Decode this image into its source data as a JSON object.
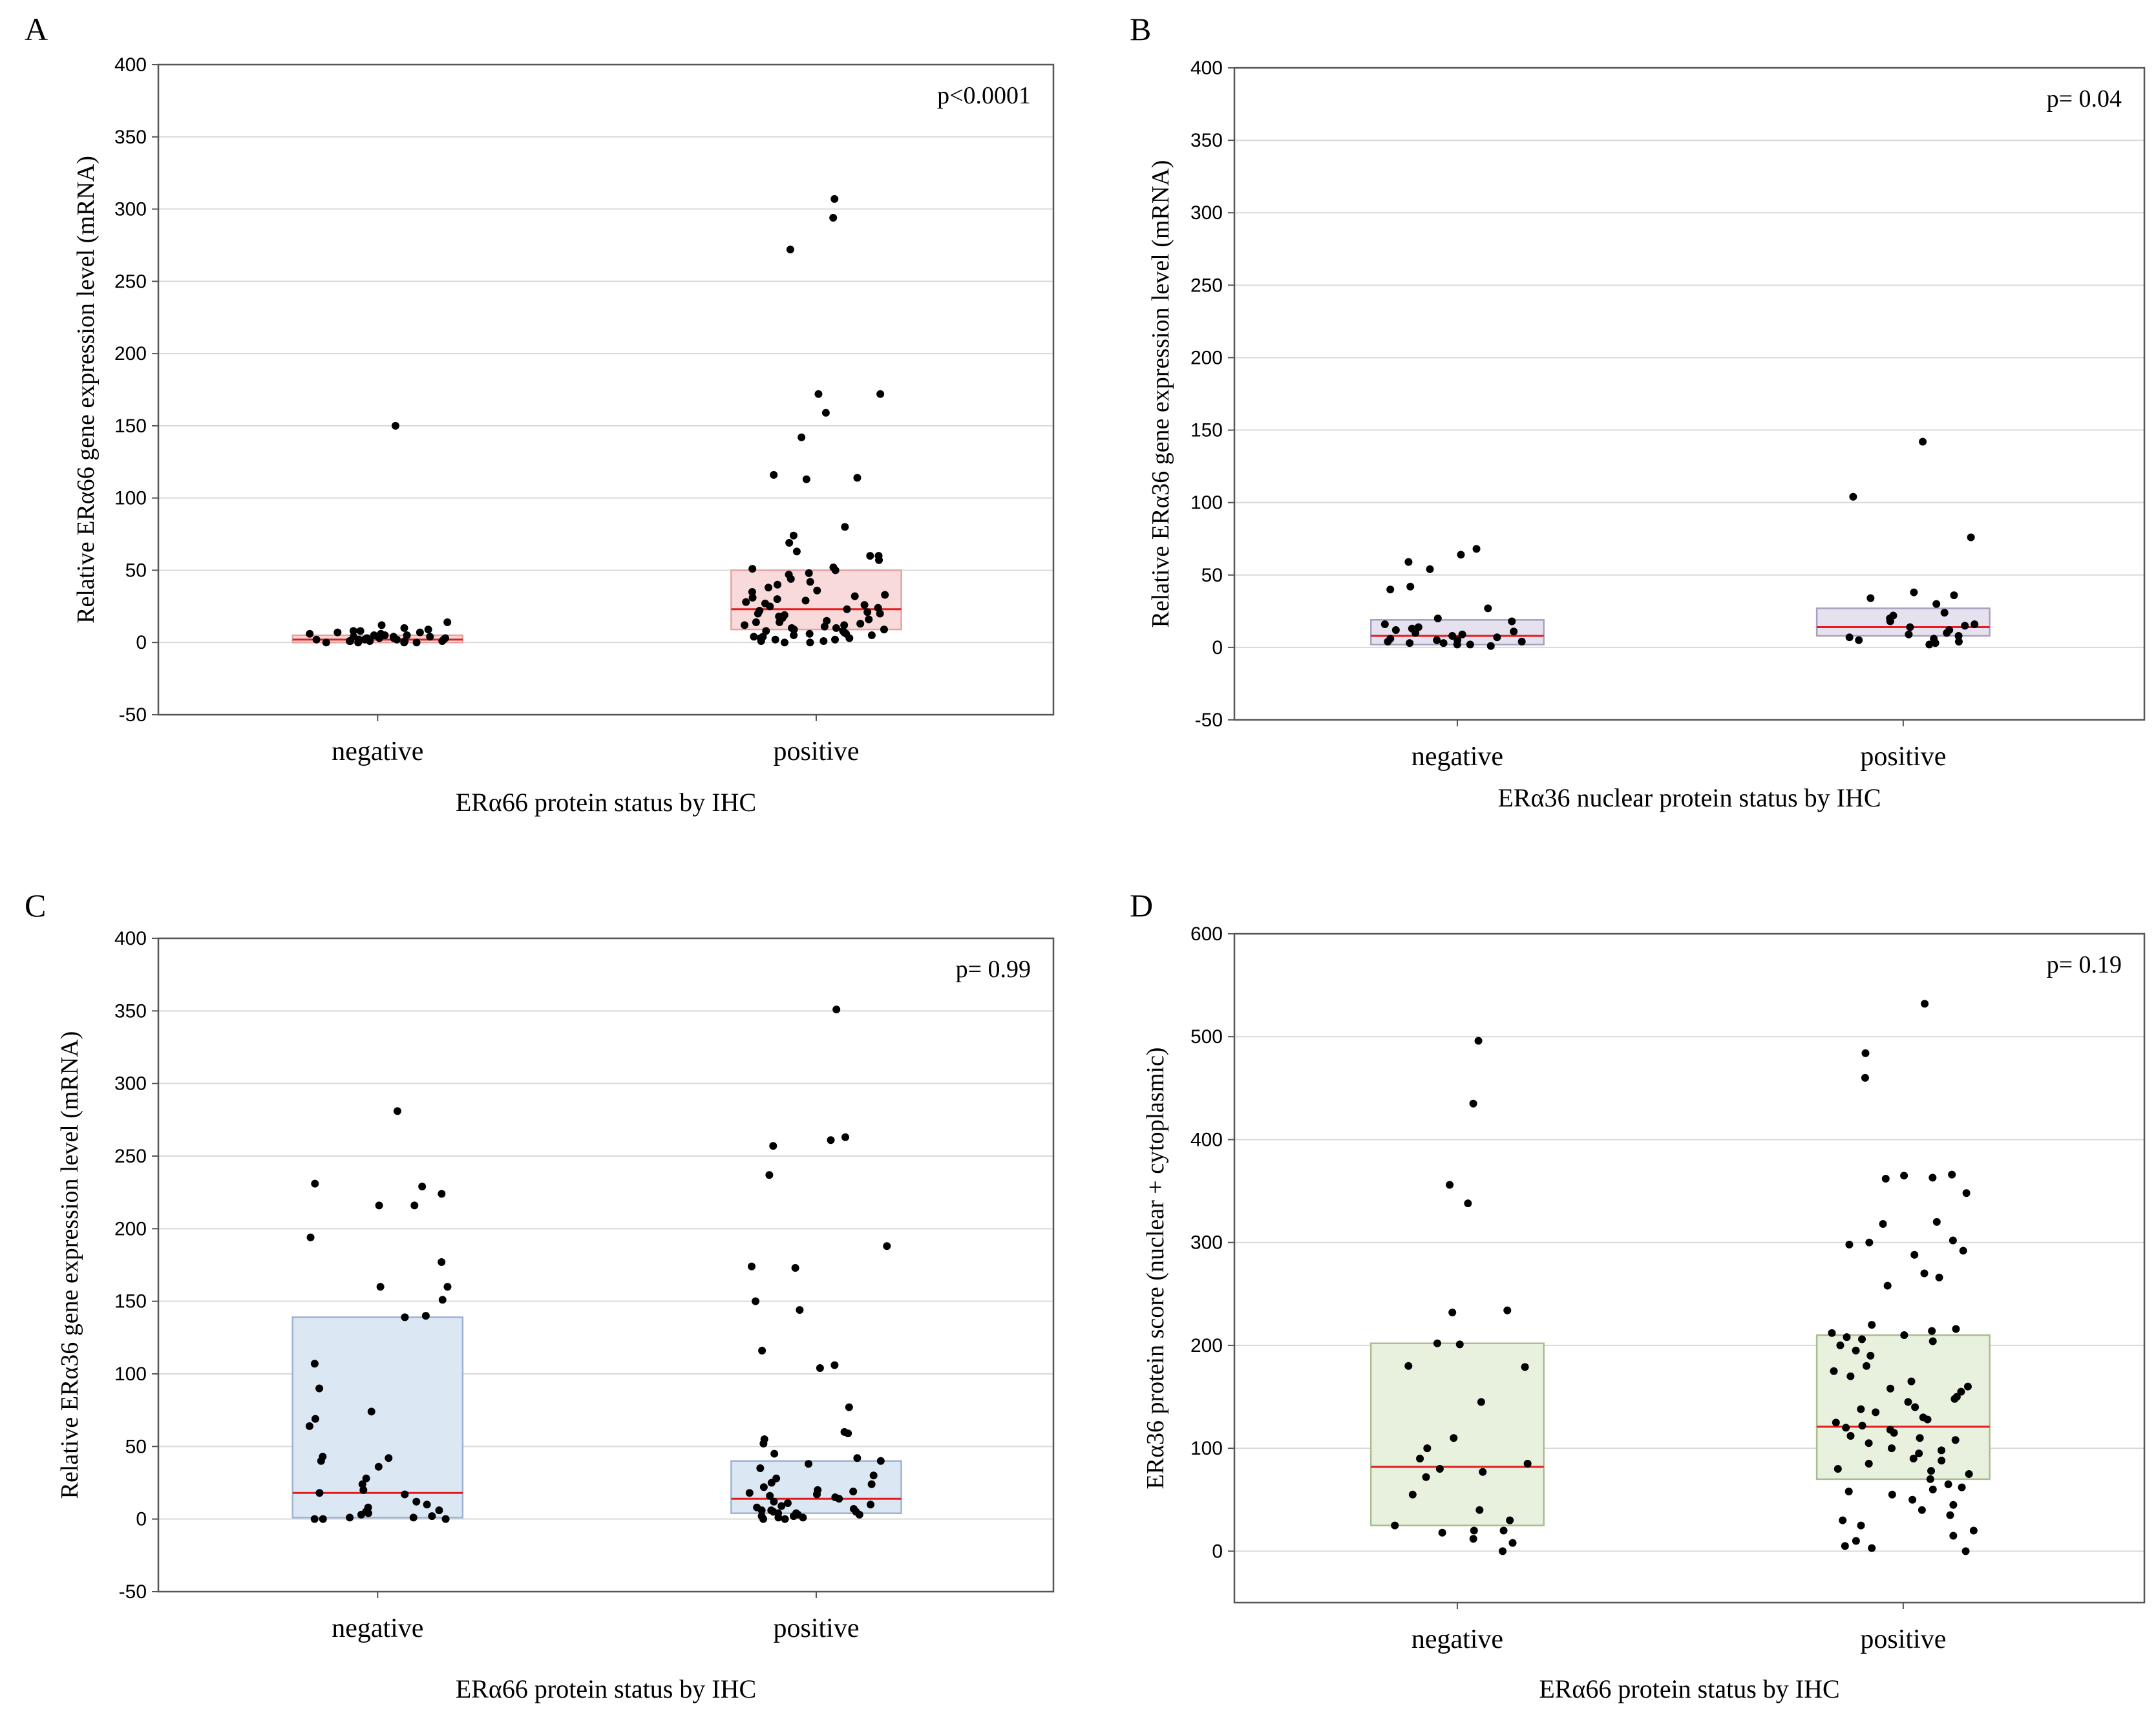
{
  "chart_data": [
    {
      "id": "A",
      "panel_label": "A",
      "type": "scatter",
      "subtype": "box-with-jitter",
      "title": "",
      "xlabel": "ERα66 protein status by IHC",
      "ylabel": "Relative ERα66 gene expression level (mRNA)",
      "ylim": [
        -50,
        400
      ],
      "yticks": [
        "-50",
        "0",
        "50",
        "100",
        "150",
        "200",
        "250",
        "300",
        "350",
        "400"
      ],
      "categories": [
        "negative",
        "positive"
      ],
      "annotation": "p<0.0001",
      "grid": true,
      "box_fill": "#f9dada",
      "box_stroke": "#e3a3a3",
      "median_color": "#e41a1c",
      "boxes": [
        {
          "category": "negative",
          "q1": 0,
          "median": 2,
          "q3": 5
        },
        {
          "category": "positive",
          "q1": 9,
          "median": 23,
          "q3": 50
        }
      ],
      "points": [
        {
          "category": "negative",
          "values": [
            150,
            14,
            12,
            10,
            9,
            8,
            8,
            7,
            7,
            6,
            6,
            5,
            5,
            5,
            4,
            4,
            4,
            3,
            3,
            3,
            3,
            2,
            2,
            2,
            2,
            2,
            1,
            1,
            1,
            1,
            1,
            0,
            0,
            0,
            0
          ]
        },
        {
          "category": "positive",
          "values": [
            307,
            294,
            272,
            172,
            172,
            159,
            142,
            116,
            114,
            113,
            80,
            74,
            69,
            63,
            60,
            60,
            57,
            52,
            51,
            50,
            48,
            47,
            44,
            42,
            40,
            38,
            36,
            35,
            33,
            32,
            31,
            30,
            29,
            28,
            27,
            26,
            25,
            24,
            23,
            22,
            21,
            20,
            20,
            19,
            18,
            17,
            16,
            15,
            14,
            14,
            13,
            12,
            12,
            11,
            10,
            10,
            9,
            9,
            8,
            8,
            7,
            6,
            6,
            5,
            5,
            4,
            4,
            3,
            3,
            2,
            2,
            1,
            1,
            0,
            0
          ]
        }
      ]
    },
    {
      "id": "B",
      "panel_label": "B",
      "type": "scatter",
      "subtype": "box-with-jitter",
      "title": "",
      "xlabel": "ERα36 nuclear protein status by IHC",
      "ylabel": "Relative ERα36 gene expression level (mRNA)",
      "ylim": [
        -50,
        400
      ],
      "yticks": [
        "-50",
        "0",
        "50",
        "100",
        "150",
        "200",
        "250",
        "300",
        "350",
        "400"
      ],
      "categories": [
        "negative",
        "positive"
      ],
      "annotation": "p= 0.04",
      "grid": true,
      "box_fill": "#e6e1ee",
      "box_stroke": "#a9a0be",
      "median_color": "#e41a1c",
      "boxes": [
        {
          "category": "negative",
          "q1": 2,
          "median": 8,
          "q3": 19
        },
        {
          "category": "positive",
          "q1": 8,
          "median": 14,
          "q3": 27
        }
      ],
      "points": [
        {
          "category": "negative",
          "values": [
            68,
            64,
            59,
            54,
            42,
            40,
            27,
            20,
            18,
            16,
            14,
            13,
            12,
            11,
            10,
            9,
            8,
            7,
            6,
            5,
            5,
            4,
            4,
            3,
            3,
            2,
            2,
            1
          ]
        },
        {
          "category": "positive",
          "values": [
            142,
            104,
            76,
            38,
            36,
            34,
            30,
            24,
            22,
            20,
            18,
            16,
            15,
            14,
            12,
            10,
            9,
            8,
            7,
            6,
            5,
            4,
            3,
            2
          ]
        }
      ]
    },
    {
      "id": "C",
      "panel_label": "C",
      "type": "scatter",
      "subtype": "box-with-jitter",
      "title": "",
      "xlabel": "ERα66 protein status by IHC",
      "ylabel": "Relative ERα36 gene expression level (mRNA)",
      "ylim": [
        -50,
        400
      ],
      "yticks": [
        "-50",
        "0",
        "50",
        "100",
        "150",
        "200",
        "250",
        "300",
        "350",
        "400"
      ],
      "categories": [
        "negative",
        "positive"
      ],
      "annotation": "p= 0.99",
      "grid": true,
      "box_fill": "#dce7f4",
      "box_stroke": "#9db3cf",
      "median_color": "#e41a1c",
      "boxes": [
        {
          "category": "negative",
          "q1": 1,
          "median": 18,
          "q3": 139
        },
        {
          "category": "positive",
          "q1": 4,
          "median": 14,
          "q3": 40
        }
      ],
      "points": [
        {
          "category": "negative",
          "values": [
            281,
            231,
            229,
            224,
            216,
            216,
            194,
            177,
            160,
            160,
            151,
            140,
            139,
            107,
            90,
            74,
            69,
            64,
            43,
            42,
            40,
            36,
            28,
            24,
            20,
            18,
            17,
            12,
            10,
            8,
            6,
            5,
            4,
            3,
            2,
            1,
            1,
            0,
            0,
            0
          ]
        },
        {
          "category": "positive",
          "values": [
            351,
            263,
            261,
            257,
            237,
            188,
            174,
            173,
            150,
            144,
            116,
            106,
            104,
            77,
            60,
            59,
            55,
            52,
            45,
            42,
            40,
            38,
            35,
            30,
            28,
            25,
            24,
            22,
            20,
            19,
            18,
            17,
            16,
            15,
            14,
            12,
            11,
            10,
            9,
            8,
            7,
            6,
            6,
            5,
            5,
            4,
            4,
            3,
            3,
            2,
            2,
            1,
            1,
            0,
            0
          ]
        }
      ]
    },
    {
      "id": "D",
      "panel_label": "D",
      "type": "scatter",
      "subtype": "box-with-jitter",
      "title": "",
      "xlabel": "ERα66 protein status by IHC",
      "ylabel": "ERα36 protein score (nuclear + cytoplasmic)",
      "ylim": [
        -50,
        600
      ],
      "yticks": [
        "0",
        "100",
        "200",
        "300",
        "400",
        "500",
        "600"
      ],
      "categories": [
        "negative",
        "positive"
      ],
      "annotation": "p= 0.19",
      "grid": true,
      "box_fill": "#e8f0de",
      "box_stroke": "#a9bc92",
      "median_color": "#e41a1c",
      "boxes": [
        {
          "category": "negative",
          "q1": 25,
          "median": 82,
          "q3": 202
        },
        {
          "category": "positive",
          "q1": 70,
          "median": 121,
          "q3": 210
        }
      ],
      "points": [
        {
          "category": "negative",
          "values": [
            496,
            435,
            356,
            338,
            234,
            232,
            202,
            201,
            180,
            179,
            145,
            110,
            100,
            90,
            85,
            80,
            77,
            72,
            55,
            40,
            30,
            25,
            20,
            20,
            18,
            12,
            8,
            0
          ]
        },
        {
          "category": "positive",
          "values": [
            532,
            484,
            460,
            366,
            365,
            363,
            362,
            348,
            320,
            318,
            302,
            300,
            298,
            292,
            288,
            270,
            266,
            258,
            220,
            216,
            214,
            212,
            210,
            208,
            206,
            204,
            200,
            195,
            190,
            180,
            175,
            170,
            165,
            160,
            158,
            155,
            150,
            148,
            145,
            140,
            138,
            135,
            130,
            128,
            125,
            122,
            120,
            118,
            115,
            112,
            110,
            108,
            105,
            100,
            98,
            95,
            90,
            88,
            85,
            80,
            78,
            75,
            70,
            65,
            62,
            60,
            58,
            55,
            50,
            45,
            40,
            35,
            30,
            25,
            20,
            15,
            10,
            5,
            3,
            0
          ]
        }
      ]
    }
  ]
}
